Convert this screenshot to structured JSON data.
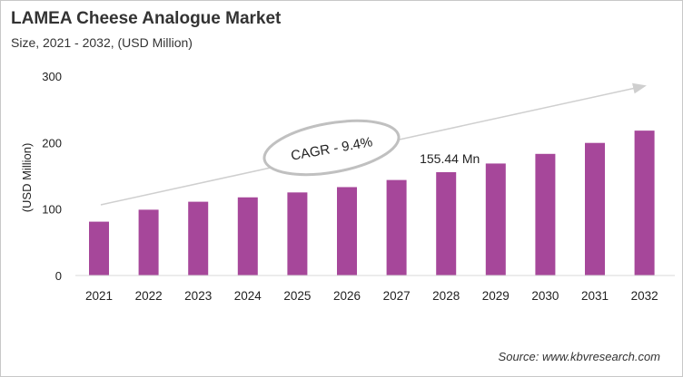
{
  "chart_data": {
    "type": "bar",
    "title": "LAMEA Cheese Analogue Market",
    "subtitle": "Size, 2021 - 2032, (USD Million)",
    "xlabel": "",
    "ylabel": "(USD Million)",
    "ylim": [
      0,
      300
    ],
    "yticks": [
      0,
      100,
      200,
      300
    ],
    "grid": false,
    "categories": [
      "2021",
      "2022",
      "2023",
      "2024",
      "2025",
      "2026",
      "2027",
      "2028",
      "2029",
      "2030",
      "2031",
      "2032"
    ],
    "values": [
      81,
      99,
      111,
      117.6,
      125,
      133,
      143.7,
      155.44,
      168.5,
      183,
      199.5,
      218
    ],
    "bar_color": "#a6479a",
    "annotations": {
      "cagr": "CAGR - 9.4%",
      "data_label": "155.44 Mn",
      "data_label_category": "2028"
    },
    "source": "Source: www.kbvresearch.com"
  }
}
